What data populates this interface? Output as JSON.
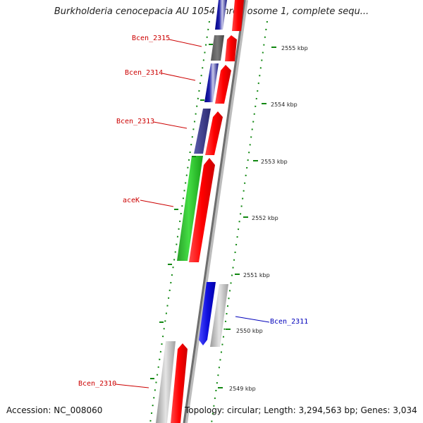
{
  "title": "Burkholderia cenocepacia AU 1054 chromosome 1, complete sequ...",
  "footer": {
    "accession": "Accession: NC_008060",
    "topology": "Topology: circular; Length: 3,294,563 bp; Genes: 3,034"
  },
  "colors": {
    "forward_cds": "#ff0000",
    "reverse_cds": "#1010dd",
    "reverse_cds_dark": "#3a3a90",
    "gene_green": "#20c020",
    "gray_feature": "#b8b8b8",
    "dark_gray_feature": "#606060",
    "ticks": "#118811",
    "label_red": "#cc0000",
    "label_blue": "#0000bb"
  },
  "ticks": [
    {
      "label": "2555 kbp"
    },
    {
      "label": "2554 kbp"
    },
    {
      "label": "2553 kbp"
    },
    {
      "label": "2552 kbp"
    },
    {
      "label": "2551 kbp"
    },
    {
      "label": "2550 kbp"
    },
    {
      "label": "2549 kbp"
    }
  ],
  "gene_labels": [
    {
      "text": "Bcen_2315",
      "color": "#cc0000"
    },
    {
      "text": "Bcen_2314",
      "color": "#cc0000"
    },
    {
      "text": "Bcen_2313",
      "color": "#cc0000"
    },
    {
      "text": "aceK",
      "color": "#cc0000"
    },
    {
      "text": "Bcen_2311",
      "color": "#0000bb"
    },
    {
      "text": "Bcen_2310",
      "color": "#cc0000"
    }
  ]
}
